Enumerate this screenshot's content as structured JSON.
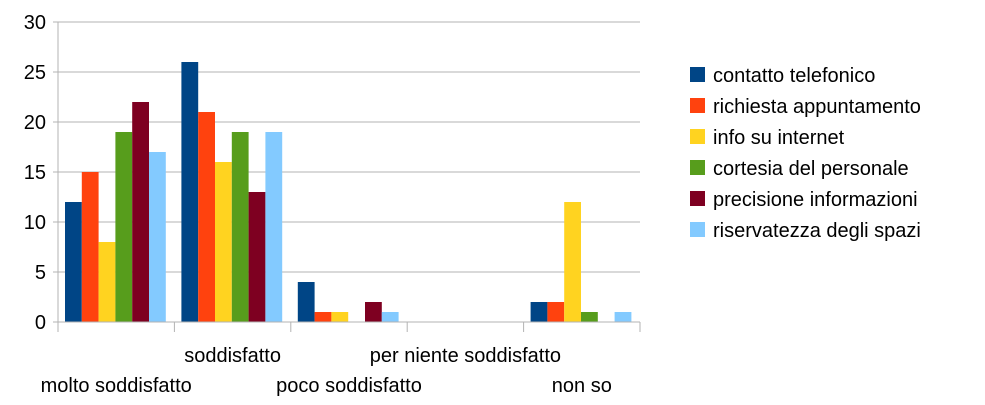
{
  "chart_data": {
    "type": "bar",
    "categories": [
      "molto soddisfatto",
      "soddisfatto",
      "poco soddisfatto",
      "per niente soddisfatto",
      "non so"
    ],
    "series": [
      {
        "name": "contatto telefonico",
        "color": "#004586",
        "values": [
          12,
          26,
          4,
          0,
          2
        ]
      },
      {
        "name": "richiesta appuntamento",
        "color": "#ff420e",
        "values": [
          15,
          21,
          1,
          0,
          2
        ]
      },
      {
        "name": "info su internet",
        "color": "#ffd320",
        "values": [
          8,
          16,
          1,
          0,
          12
        ]
      },
      {
        "name": "cortesia del personale",
        "color": "#579d1c",
        "values": [
          19,
          19,
          0,
          0,
          1
        ]
      },
      {
        "name": "precisione informazioni",
        "color": "#7e0021",
        "values": [
          22,
          13,
          2,
          0,
          0
        ]
      },
      {
        "name": "riservatezza degli spazi",
        "color": "#83caff",
        "values": [
          17,
          19,
          1,
          0,
          1
        ]
      }
    ],
    "yticks": [
      0,
      5,
      10,
      15,
      20,
      25,
      30
    ],
    "ylim": [
      0,
      30
    ],
    "grid": true,
    "legend_position": "right"
  }
}
